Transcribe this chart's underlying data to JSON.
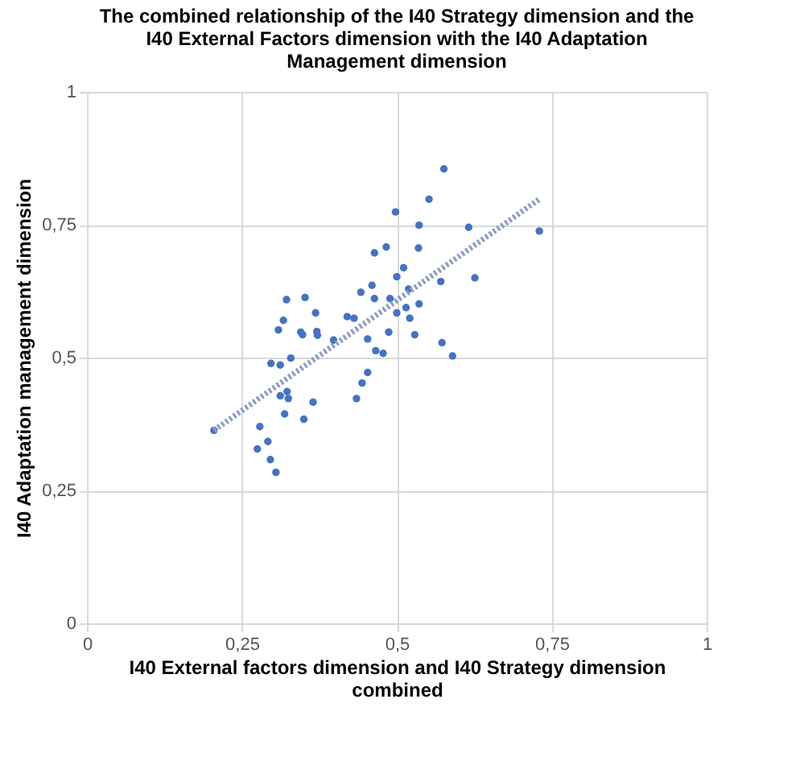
{
  "chart_data": {
    "type": "scatter",
    "title": "The combined relationship of the I40 Strategy dimension and the\nI40 External Factors dimension with the I40 Adaptation\nManagement dimension",
    "xlabel": "I40 External factors dimension and I40 Strategy dimension\ncombined",
    "ylabel": "I40 Adaptation management dimension",
    "xlim": [
      0,
      1
    ],
    "ylim": [
      0,
      1
    ],
    "xticks": [
      0,
      {
        "value": 0.25,
        "label": "0,25"
      },
      {
        "value": 0.5,
        "label": "0,5"
      },
      {
        "value": 0.75,
        "label": "0,75"
      },
      1
    ],
    "yticks": [
      0,
      {
        "value": 0.25,
        "label": "0,25"
      },
      {
        "value": 0.5,
        "label": "0,5"
      },
      {
        "value": 0.75,
        "label": "0,75"
      },
      1
    ],
    "grid": true,
    "series": [
      {
        "marker": "circle",
        "color": "#4472c4",
        "x": [
          0.576,
          0.552,
          0.498,
          0.536,
          0.616,
          0.73,
          0.483,
          0.464,
          0.535,
          0.511,
          0.5,
          0.571,
          0.626,
          0.46,
          0.519,
          0.442,
          0.464,
          0.489,
          0.322,
          0.352,
          0.536,
          0.515,
          0.5,
          0.369,
          0.317,
          0.42,
          0.431,
          0.521,
          0.309,
          0.345,
          0.348,
          0.371,
          0.372,
          0.487,
          0.529,
          0.398,
          0.453,
          0.573,
          0.466,
          0.478,
          0.59,
          0.329,
          0.297,
          0.312,
          0.453,
          0.444,
          0.323,
          0.312,
          0.325,
          0.435,
          0.365,
          0.319,
          0.35,
          0.279,
          0.292,
          0.275,
          0.296,
          0.305,
          0.205
        ],
        "values": [
          0.855,
          0.798,
          0.774,
          0.749,
          0.745,
          0.738,
          0.708,
          0.697,
          0.706,
          0.669,
          0.652,
          0.643,
          0.65,
          0.636,
          0.629,
          0.623,
          0.611,
          0.611,
          0.609,
          0.613,
          0.601,
          0.594,
          0.584,
          0.584,
          0.57,
          0.577,
          0.574,
          0.574,
          0.552,
          0.548,
          0.543,
          0.549,
          0.542,
          0.548,
          0.543,
          0.533,
          0.535,
          0.528,
          0.513,
          0.508,
          0.503,
          0.499,
          0.489,
          0.486,
          0.472,
          0.452,
          0.436,
          0.428,
          0.423,
          0.423,
          0.416,
          0.394,
          0.384,
          0.37,
          0.342,
          0.328,
          0.308,
          0.284,
          0.363
        ]
      },
      {
        "type": "line",
        "color": "#8c9cc4",
        "line_style": "dotted",
        "x": [
          0.205,
          0.73
        ],
        "values": [
          0.363,
          0.798
        ]
      }
    ]
  }
}
